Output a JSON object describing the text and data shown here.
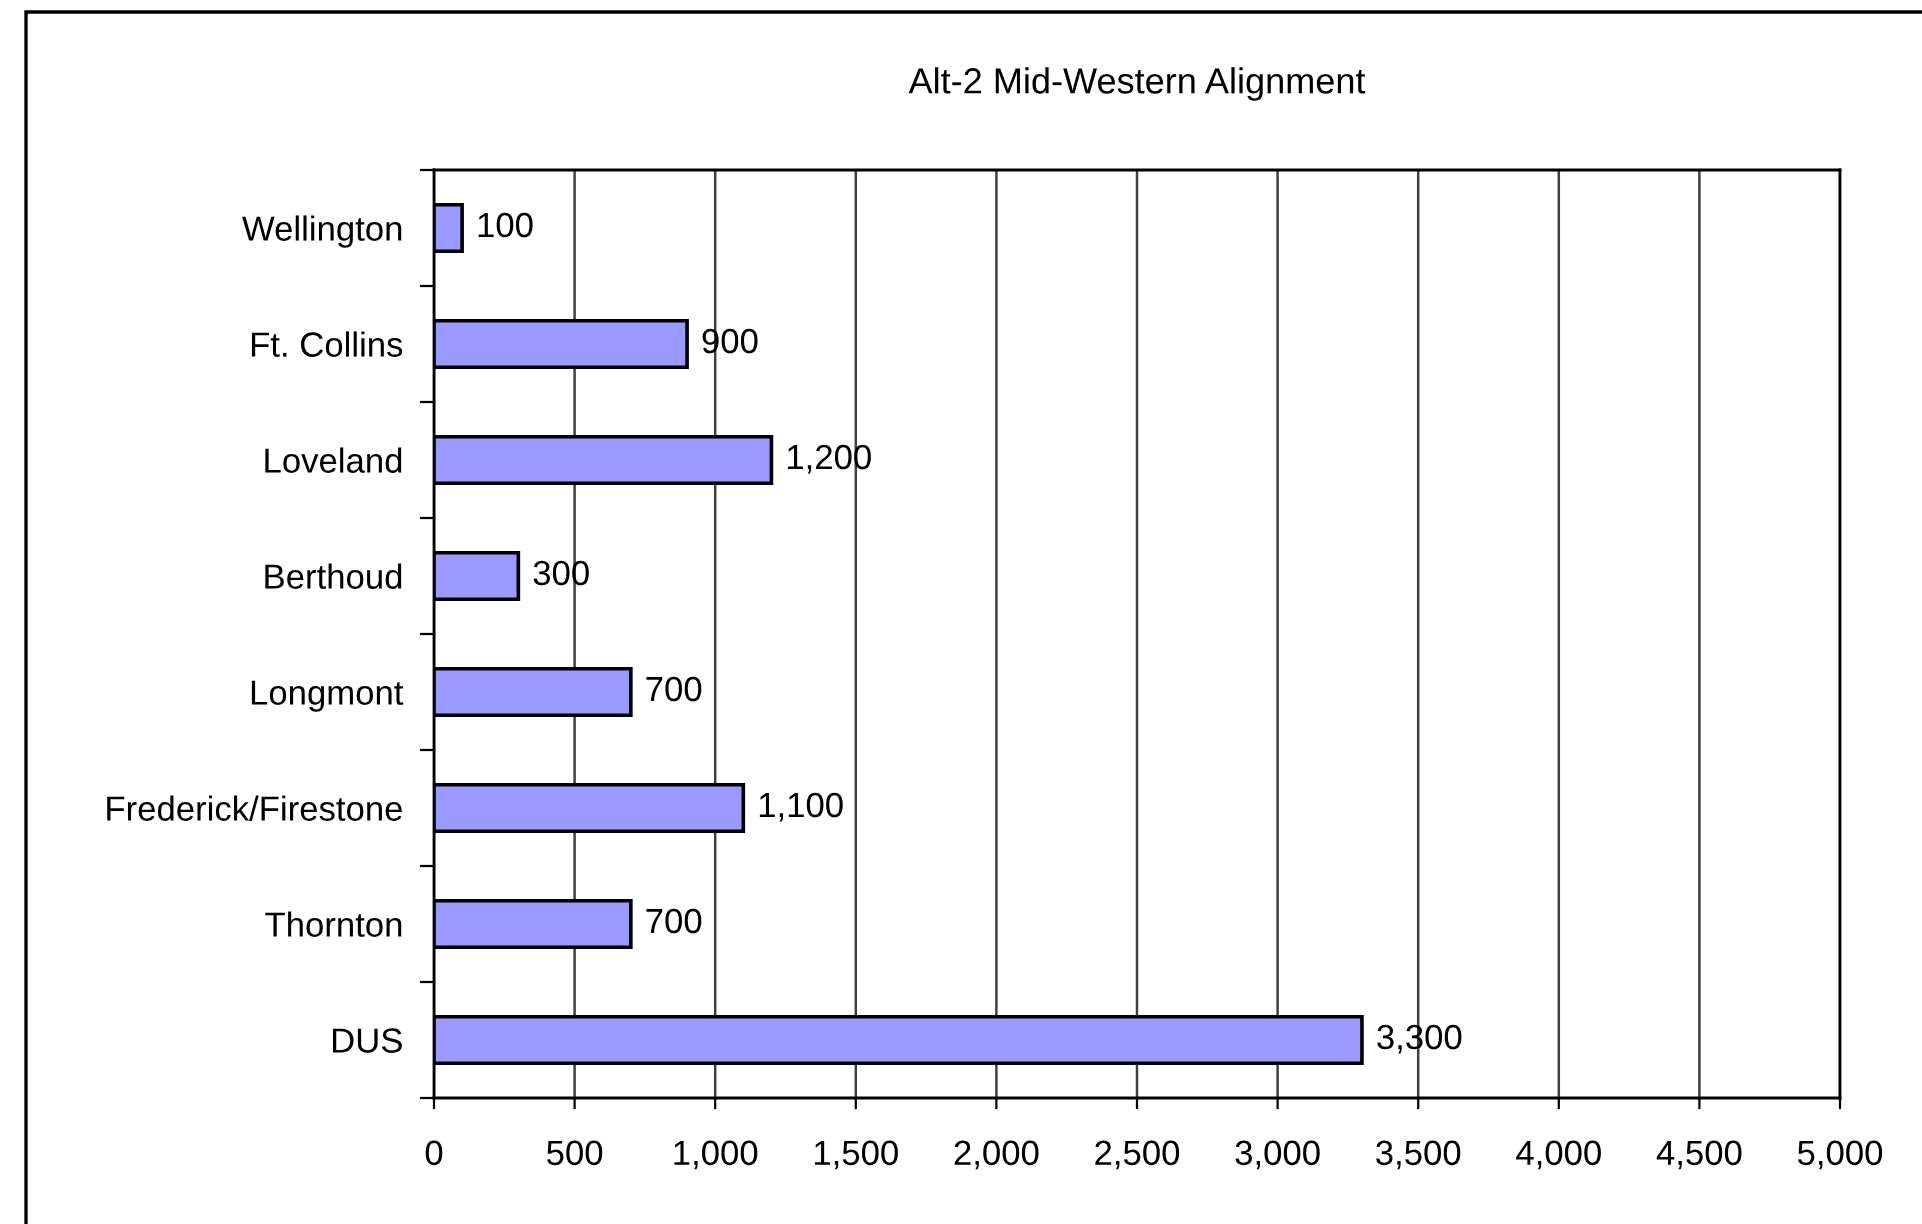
{
  "chart_data": {
    "type": "bar",
    "orientation": "horizontal",
    "title": "Alt-2 Mid-Western Alignment",
    "categories": [
      "Wellington",
      "Ft. Collins",
      "Loveland",
      "Berthoud",
      "Longmont",
      "Frederick/Firestone",
      "Thornton",
      "DUS"
    ],
    "values": [
      100,
      900,
      1200,
      300,
      700,
      1100,
      700,
      3300
    ],
    "value_labels": [
      "100",
      "900",
      "1,200",
      "300",
      "700",
      "1,100",
      "700",
      "3,300"
    ],
    "color": "#9999ff",
    "xlim": [
      0,
      5000
    ],
    "xticks": [
      0,
      500,
      {
        "value": 1000,
        "label": "1,000"
      },
      {
        "value": 1500,
        "label": "1,500"
      },
      {
        "value": 2000,
        "label": "2,000"
      },
      {
        "value": 2500,
        "label": "2,500"
      },
      {
        "value": 3000,
        "label": "3,000"
      },
      {
        "value": 3500,
        "label": "3,500"
      },
      {
        "value": 4000,
        "label": "4,000"
      },
      {
        "value": 4500,
        "label": "4,500"
      },
      {
        "value": 5000,
        "label": "5,000"
      }
    ],
    "grid": "x",
    "legend": false
  }
}
